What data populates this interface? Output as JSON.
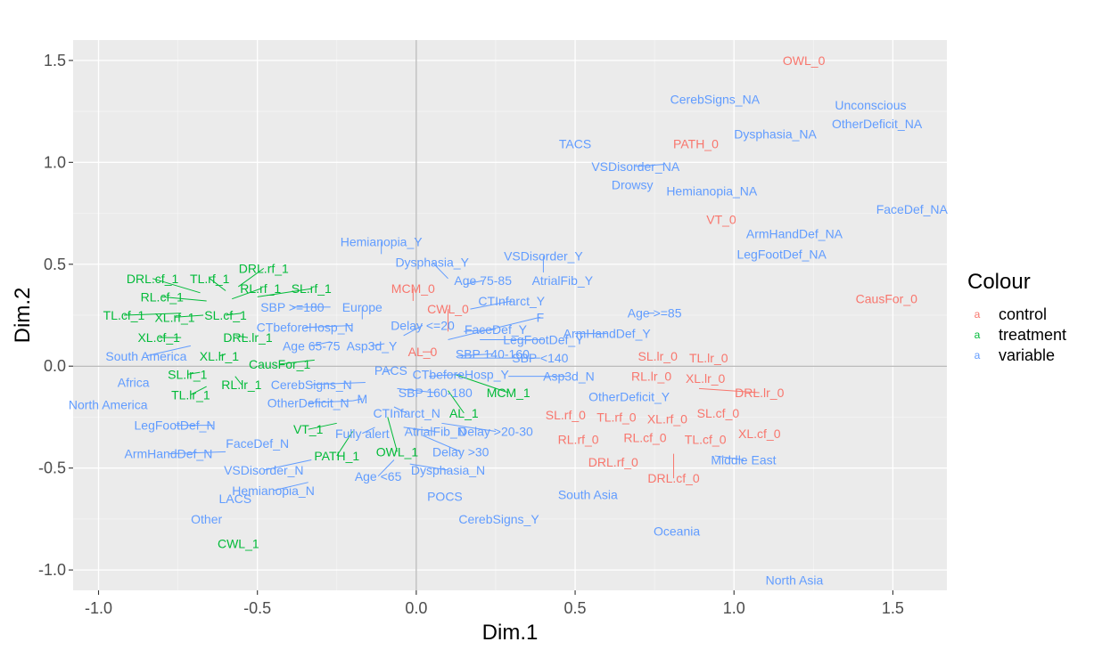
{
  "chart_data": {
    "type": "scatter",
    "title": "",
    "xlabel": "Dim.1",
    "ylabel": "Dim.2",
    "xlim": [
      -1.08,
      1.67
    ],
    "ylim": [
      -1.1,
      1.6
    ],
    "x_ticks": [
      -1.0,
      -0.5,
      0.0,
      0.5,
      1.0,
      1.5
    ],
    "x_tick_labels": [
      "-1.0",
      "-0.5",
      "0.0",
      "0.5",
      "1.0",
      "1.5"
    ],
    "y_ticks": [
      -1.0,
      -0.5,
      0.0,
      0.5,
      1.0,
      1.5
    ],
    "y_tick_labels": [
      "-1.0",
      "-0.5",
      "0.0",
      "0.5",
      "1.0",
      "1.5"
    ],
    "grid": true,
    "legend_position": "right",
    "legend": {
      "title": "Colour",
      "key_glyph": "a",
      "entries": [
        {
          "name": "control",
          "color": "#F8766D"
        },
        {
          "name": "treatment",
          "color": "#00BA38"
        },
        {
          "name": "variable",
          "color": "#619CFF"
        }
      ]
    },
    "series": [
      {
        "name": "control",
        "color": "#F8766D",
        "points": [
          {
            "label": "OWL_0",
            "x": 1.22,
            "y": 1.5,
            "lx": 1.22,
            "ly": 1.5
          },
          {
            "label": "PATH_0",
            "x": 0.88,
            "y": 1.09,
            "lx": 0.88,
            "ly": 1.09
          },
          {
            "label": "VT_0",
            "x": 0.96,
            "y": 0.72,
            "lx": 0.96,
            "ly": 0.72
          },
          {
            "label": "CausFor_0",
            "x": 1.48,
            "y": 0.33,
            "lx": 1.48,
            "ly": 0.33
          },
          {
            "label": "MCM_0",
            "x": -0.01,
            "y": 0.32,
            "lx": -0.01,
            "ly": 0.38
          },
          {
            "label": "CWL_0",
            "x": 0.1,
            "y": 0.17,
            "lx": 0.1,
            "ly": 0.28
          },
          {
            "label": "AL_0",
            "x": 0.05,
            "y": 0.07,
            "lx": 0.02,
            "ly": 0.07
          },
          {
            "label": "SL.lr_0",
            "x": 0.76,
            "y": 0.05,
            "lx": 0.76,
            "ly": 0.05
          },
          {
            "label": "TL.lr_0",
            "x": 0.92,
            "y": 0.04,
            "lx": 0.92,
            "ly": 0.04
          },
          {
            "label": "RL.lr_0",
            "x": 0.74,
            "y": -0.05,
            "lx": 0.74,
            "ly": -0.05
          },
          {
            "label": "XL.lr_0",
            "x": 0.91,
            "y": -0.06,
            "lx": 0.91,
            "ly": -0.06
          },
          {
            "label": "DRL.lr_0",
            "x": 0.89,
            "y": -0.11,
            "lx": 1.08,
            "ly": -0.13
          },
          {
            "label": "SL.rf_0",
            "x": 0.48,
            "y": -0.24,
            "lx": 0.47,
            "ly": -0.24
          },
          {
            "label": "TL.rf_0",
            "x": 0.63,
            "y": -0.25,
            "lx": 0.63,
            "ly": -0.25
          },
          {
            "label": "XL.rf_0",
            "x": 0.79,
            "y": -0.26,
            "lx": 0.79,
            "ly": -0.26
          },
          {
            "label": "SL.cf_0",
            "x": 0.95,
            "y": -0.23,
            "lx": 0.95,
            "ly": -0.23
          },
          {
            "label": "RL.rf_0",
            "x": 0.51,
            "y": -0.36,
            "lx": 0.51,
            "ly": -0.36
          },
          {
            "label": "RL.cf_0",
            "x": 0.72,
            "y": -0.35,
            "lx": 0.72,
            "ly": -0.35
          },
          {
            "label": "TL.cf_0",
            "x": 0.91,
            "y": -0.36,
            "lx": 0.91,
            "ly": -0.36
          },
          {
            "label": "XL.cf_0",
            "x": 1.08,
            "y": -0.33,
            "lx": 1.08,
            "ly": -0.33
          },
          {
            "label": "DRL.rf_0",
            "x": 0.62,
            "y": -0.47,
            "lx": 0.62,
            "ly": -0.47
          },
          {
            "label": "DRL.cf_0",
            "x": 0.81,
            "y": -0.43,
            "lx": 0.81,
            "ly": -0.55
          }
        ]
      },
      {
        "name": "treatment",
        "color": "#00BA38",
        "points": [
          {
            "label": "DRL.cf_1",
            "x": -0.68,
            "y": 0.36,
            "lx": -0.83,
            "ly": 0.43
          },
          {
            "label": "TL.rf_1",
            "x": -0.6,
            "y": 0.37,
            "lx": -0.65,
            "ly": 0.43
          },
          {
            "label": "DRL.rf_1",
            "x": -0.56,
            "y": 0.39,
            "lx": -0.48,
            "ly": 0.48
          },
          {
            "label": "RL.rf_1",
            "x": -0.58,
            "y": 0.33,
            "lx": -0.49,
            "ly": 0.38
          },
          {
            "label": "SL.rf_1",
            "x": -0.5,
            "y": 0.34,
            "lx": -0.33,
            "ly": 0.38
          },
          {
            "label": "RL.cf_1",
            "x": -0.66,
            "y": 0.32,
            "lx": -0.8,
            "ly": 0.34
          },
          {
            "label": "TL.cf_1",
            "x": -0.74,
            "y": 0.26,
            "lx": -0.92,
            "ly": 0.25
          },
          {
            "label": "XL.rf_1",
            "x": -0.67,
            "y": 0.25,
            "lx": -0.76,
            "ly": 0.24
          },
          {
            "label": "SL.cf_1",
            "x": -0.55,
            "y": 0.26,
            "lx": -0.6,
            "ly": 0.25
          },
          {
            "label": "XL.cf_1",
            "x": -0.74,
            "y": 0.14,
            "lx": -0.81,
            "ly": 0.14
          },
          {
            "label": "DRL.lr_1",
            "x": -0.57,
            "y": 0.15,
            "lx": -0.53,
            "ly": 0.14
          },
          {
            "label": "XL.lr_1",
            "x": -0.6,
            "y": 0.06,
            "lx": -0.62,
            "ly": 0.05
          },
          {
            "label": "CausFor_1",
            "x": -0.32,
            "y": 0.03,
            "lx": -0.43,
            "ly": 0.01
          },
          {
            "label": "SL.lr_1",
            "x": -0.68,
            "y": -0.03,
            "lx": -0.72,
            "ly": -0.04
          },
          {
            "label": "RL.lr_1",
            "x": -0.57,
            "y": -0.05,
            "lx": -0.55,
            "ly": -0.09
          },
          {
            "label": "TL.lr_1",
            "x": -0.66,
            "y": -0.1,
            "lx": -0.71,
            "ly": -0.14
          },
          {
            "label": "MCM_1",
            "x": 0.12,
            "y": -0.04,
            "lx": 0.29,
            "ly": -0.13
          },
          {
            "label": "AL_1",
            "x": 0.1,
            "y": -0.12,
            "lx": 0.15,
            "ly": -0.23
          },
          {
            "label": "VT_1",
            "x": -0.25,
            "y": -0.28,
            "lx": -0.34,
            "ly": -0.31
          },
          {
            "label": "OWL_1",
            "x": -0.09,
            "y": -0.25,
            "lx": -0.06,
            "ly": -0.42
          },
          {
            "label": "PATH_1",
            "x": -0.2,
            "y": -0.32,
            "lx": -0.25,
            "ly": -0.44
          },
          {
            "label": "CWL_1",
            "x": -0.56,
            "y": -0.87,
            "lx": -0.56,
            "ly": -0.87
          }
        ]
      },
      {
        "name": "variable",
        "color": "#619CFF",
        "points": [
          {
            "label": "CerebSigns_NA",
            "x": 0.94,
            "y": 1.31,
            "lx": 0.94,
            "ly": 1.31
          },
          {
            "label": "Unconscious",
            "x": 1.43,
            "y": 1.28,
            "lx": 1.43,
            "ly": 1.28
          },
          {
            "label": "OtherDeficit_NA",
            "x": 1.45,
            "y": 1.19,
            "lx": 1.45,
            "ly": 1.19
          },
          {
            "label": "Dysphasia_NA",
            "x": 1.13,
            "y": 1.14,
            "lx": 1.13,
            "ly": 1.14
          },
          {
            "label": "TACS",
            "x": 0.5,
            "y": 1.09,
            "lx": 0.5,
            "ly": 1.09
          },
          {
            "label": "VSDisorder_NA",
            "x": 0.78,
            "y": 0.99,
            "lx": 0.69,
            "ly": 0.98
          },
          {
            "label": "Drowsy",
            "x": 0.68,
            "y": 0.89,
            "lx": 0.68,
            "ly": 0.89
          },
          {
            "label": "Hemianopia_NA",
            "x": 0.93,
            "y": 0.86,
            "lx": 0.93,
            "ly": 0.86
          },
          {
            "label": "FaceDef_NA",
            "x": 1.56,
            "y": 0.77,
            "lx": 1.56,
            "ly": 0.77
          },
          {
            "label": "ArmHandDef_NA",
            "x": 1.19,
            "y": 0.65,
            "lx": 1.19,
            "ly": 0.65
          },
          {
            "label": "LegFootDef_NA",
            "x": 1.15,
            "y": 0.55,
            "lx": 1.15,
            "ly": 0.55
          },
          {
            "label": "Hemianopia_Y",
            "x": -0.11,
            "y": 0.55,
            "lx": -0.11,
            "ly": 0.61
          },
          {
            "label": "VSDisorder_Y",
            "x": 0.4,
            "y": 0.46,
            "lx": 0.4,
            "ly": 0.54
          },
          {
            "label": "Dysphasia_Y",
            "x": 0.1,
            "y": 0.43,
            "lx": 0.05,
            "ly": 0.51
          },
          {
            "label": "Age 75-85",
            "x": 0.15,
            "y": 0.4,
            "lx": 0.21,
            "ly": 0.42
          },
          {
            "label": "AtrialFib_Y",
            "x": 0.46,
            "y": 0.42,
            "lx": 0.46,
            "ly": 0.42
          },
          {
            "label": "CTInfarct_Y",
            "x": 0.17,
            "y": 0.28,
            "lx": 0.3,
            "ly": 0.32
          },
          {
            "label": "SBP >=180",
            "x": -0.27,
            "y": 0.29,
            "lx": -0.39,
            "ly": 0.29
          },
          {
            "label": "Europe",
            "x": -0.17,
            "y": 0.23,
            "lx": -0.17,
            "ly": 0.29
          },
          {
            "label": "F",
            "x": 0.1,
            "y": 0.13,
            "lx": 0.39,
            "ly": 0.24
          },
          {
            "label": "Age >=85",
            "x": 0.73,
            "y": 0.26,
            "lx": 0.75,
            "ly": 0.26
          },
          {
            "label": "CTbeforeHosp_N",
            "x": -0.2,
            "y": 0.2,
            "lx": -0.35,
            "ly": 0.19
          },
          {
            "label": "Delay <=20",
            "x": -0.04,
            "y": 0.15,
            "lx": 0.02,
            "ly": 0.2
          },
          {
            "label": "FaceDef_Y",
            "x": 0.15,
            "y": 0.17,
            "lx": 0.25,
            "ly": 0.18
          },
          {
            "label": "ArmHandDef_Y",
            "x": 0.5,
            "y": 0.16,
            "lx": 0.6,
            "ly": 0.16
          },
          {
            "label": "LegFootDef_Y",
            "x": 0.2,
            "y": 0.13,
            "lx": 0.4,
            "ly": 0.13
          },
          {
            "label": "Age 65-75",
            "x": -0.27,
            "y": 0.12,
            "lx": -0.33,
            "ly": 0.1
          },
          {
            "label": "Asp3d_Y",
            "x": -0.1,
            "y": 0.11,
            "lx": -0.14,
            "ly": 0.1
          },
          {
            "label": "South America",
            "x": -0.71,
            "y": 0.1,
            "lx": -0.85,
            "ly": 0.05
          },
          {
            "label": "SBP 140-160",
            "x": 0.13,
            "y": 0.05,
            "lx": 0.24,
            "ly": 0.06
          },
          {
            "label": "SBP <140",
            "x": 0.14,
            "y": 0.04,
            "lx": 0.39,
            "ly": 0.04
          },
          {
            "label": "PACS",
            "x": -0.1,
            "y": -0.02,
            "lx": -0.08,
            "ly": -0.02
          },
          {
            "label": "CTbeforeHosp_Y",
            "x": 0.04,
            "y": -0.05,
            "lx": 0.14,
            "ly": -0.04
          },
          {
            "label": "Asp3d_N",
            "x": 0.29,
            "y": -0.05,
            "lx": 0.48,
            "ly": -0.05
          },
          {
            "label": "Africa",
            "x": -0.89,
            "y": -0.08,
            "lx": -0.89,
            "ly": -0.08
          },
          {
            "label": "CerebSigns_N",
            "x": -0.16,
            "y": -0.08,
            "lx": -0.33,
            "ly": -0.09
          },
          {
            "label": "SBP 160-180",
            "x": -0.06,
            "y": -0.11,
            "lx": 0.06,
            "ly": -0.13
          },
          {
            "label": "OtherDeficit_Y",
            "x": 0.67,
            "y": -0.15,
            "lx": 0.67,
            "ly": -0.15
          },
          {
            "label": "OtherDeficit_N",
            "x": -0.2,
            "y": -0.17,
            "lx": -0.34,
            "ly": -0.18
          },
          {
            "label": "M",
            "x": -0.2,
            "y": -0.17,
            "lx": -0.17,
            "ly": -0.16
          },
          {
            "label": "North America",
            "x": -0.97,
            "y": -0.19,
            "lx": -0.97,
            "ly": -0.19
          },
          {
            "label": "CTInfarct_N",
            "x": -0.07,
            "y": -0.2,
            "lx": -0.03,
            "ly": -0.23
          },
          {
            "label": "LegFootDef_N",
            "x": -0.64,
            "y": -0.29,
            "lx": -0.76,
            "ly": -0.29
          },
          {
            "label": "Fully alert",
            "x": -0.13,
            "y": -0.3,
            "lx": -0.17,
            "ly": -0.33
          },
          {
            "label": "AtrialFib_N",
            "x": -0.04,
            "y": -0.3,
            "lx": 0.06,
            "ly": -0.32
          },
          {
            "label": "Delay >20-30",
            "x": 0.08,
            "y": -0.28,
            "lx": 0.25,
            "ly": -0.32
          },
          {
            "label": "FaceDef_N",
            "x": -0.49,
            "y": -0.38,
            "lx": -0.5,
            "ly": -0.38
          },
          {
            "label": "ArmHandDef_N",
            "x": -0.6,
            "y": -0.42,
            "lx": -0.78,
            "ly": -0.43
          },
          {
            "label": "Delay >30",
            "x": 0.02,
            "y": -0.34,
            "lx": 0.14,
            "ly": -0.42
          },
          {
            "label": "Middle East",
            "x": 0.94,
            "y": -0.44,
            "lx": 1.03,
            "ly": -0.46
          },
          {
            "label": "VSDisorder_N",
            "x": -0.33,
            "y": -0.46,
            "lx": -0.48,
            "ly": -0.51
          },
          {
            "label": "Dysphasia_N",
            "x": -0.02,
            "y": -0.48,
            "lx": 0.1,
            "ly": -0.51
          },
          {
            "label": "Age <65",
            "x": -0.07,
            "y": -0.46,
            "lx": -0.12,
            "ly": -0.54
          },
          {
            "label": "Hemianopia_N",
            "x": -0.34,
            "y": -0.57,
            "lx": -0.45,
            "ly": -0.61
          },
          {
            "label": "LACS",
            "x": -0.57,
            "y": -0.65,
            "lx": -0.57,
            "ly": -0.65
          },
          {
            "label": "POCS",
            "x": 0.09,
            "y": -0.64,
            "lx": 0.09,
            "ly": -0.64
          },
          {
            "label": "South Asia",
            "x": 0.54,
            "y": -0.63,
            "lx": 0.54,
            "ly": -0.63
          },
          {
            "label": "CerebSigns_Y",
            "x": 0.26,
            "y": -0.75,
            "lx": 0.26,
            "ly": -0.75
          },
          {
            "label": "Other",
            "x": -0.66,
            "y": -0.75,
            "lx": -0.66,
            "ly": -0.75
          },
          {
            "label": "Oceania",
            "x": 0.82,
            "y": -0.81,
            "lx": 0.82,
            "ly": -0.81
          },
          {
            "label": "North Asia",
            "x": 1.19,
            "y": -1.05,
            "lx": 1.19,
            "ly": -1.05
          }
        ]
      }
    ]
  }
}
